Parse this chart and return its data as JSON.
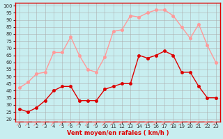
{
  "x": [
    0,
    1,
    2,
    3,
    4,
    5,
    6,
    7,
    8,
    9,
    10,
    11,
    12,
    13,
    14,
    15,
    16,
    17,
    18,
    19,
    20,
    21,
    22,
    23
  ],
  "wind_avg": [
    27,
    25,
    28,
    33,
    40,
    43,
    43,
    33,
    33,
    33,
    41,
    43,
    45,
    45,
    65,
    63,
    65,
    68,
    65,
    53,
    53,
    43,
    35,
    35
  ],
  "wind_gust": [
    42,
    46,
    52,
    53,
    67,
    67,
    78,
    65,
    55,
    53,
    64,
    82,
    83,
    93,
    92,
    95,
    97,
    97,
    93,
    85,
    77,
    87,
    72,
    60
  ],
  "avg_color": "#dd0000",
  "gust_color": "#ff9999",
  "background": "#c8eef0",
  "grid_color": "#aaaaaa",
  "xlabel": "Vent moyen/en rafales ( km/h )",
  "xlabel_color": "#dd0000",
  "ylabel_ticks": [
    20,
    25,
    30,
    35,
    40,
    45,
    50,
    55,
    60,
    65,
    70,
    75,
    80,
    85,
    90,
    95,
    100
  ],
  "ylim": [
    18,
    102
  ],
  "xlim": [
    -0.5,
    23.5
  ]
}
